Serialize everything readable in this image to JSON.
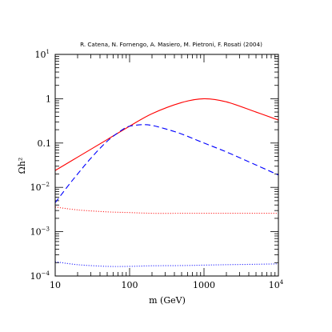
{
  "chart_data": {
    "type": "line",
    "title": "R. Catena, N. Fornengo, A. Masiero, M. Pietroni, F. Rosati (2004)",
    "xlabel": "m (GeV)",
    "ylabel": "Ωh²",
    "xscale": "log",
    "yscale": "log",
    "xlim": [
      10,
      10000
    ],
    "ylim": [
      0.0001,
      10
    ],
    "grid": false,
    "x_ticks": [
      {
        "base": "10",
        "exp": ""
      },
      {
        "base": "100",
        "exp": ""
      },
      {
        "base": "1000",
        "exp": ""
      },
      {
        "base": "10",
        "exp": "4"
      }
    ],
    "y_ticks": [
      {
        "base": "10",
        "exp": "−4"
      },
      {
        "base": "10",
        "exp": "−3"
      },
      {
        "base": "10",
        "exp": "−2"
      },
      {
        "base": "0.1",
        "exp": ""
      },
      {
        "base": "1",
        "exp": ""
      },
      {
        "base": "10",
        "exp": "1"
      }
    ],
    "series": [
      {
        "color": "#ff0000",
        "style": "solid",
        "x": [
          10,
          20,
          50,
          100,
          200,
          500,
          1000,
          2000,
          5000,
          10000
        ],
        "y": [
          0.024,
          0.048,
          0.12,
          0.24,
          0.46,
          0.82,
          1.0,
          0.85,
          0.5,
          0.33
        ]
      },
      {
        "color": "#0000ff",
        "style": "dashed",
        "x": [
          10,
          15,
          20,
          30,
          50,
          80,
          100,
          150,
          200,
          300,
          500,
          1000,
          2000,
          5000,
          10000
        ],
        "y": [
          0.0045,
          0.011,
          0.02,
          0.045,
          0.11,
          0.2,
          0.24,
          0.26,
          0.25,
          0.21,
          0.16,
          0.1,
          0.063,
          0.032,
          0.019
        ]
      },
      {
        "color": "#ff0000",
        "style": "dotted",
        "x": [
          10,
          20,
          50,
          100,
          200,
          500,
          1000,
          2000,
          5000,
          10000
        ],
        "y": [
          0.0036,
          0.0031,
          0.0028,
          0.0027,
          0.0026,
          0.0026,
          0.0026,
          0.0026,
          0.0026,
          0.0026
        ]
      },
      {
        "color": "#0000ff",
        "style": "dotted",
        "x": [
          10,
          20,
          50,
          100,
          200,
          500,
          1000,
          2000,
          5000,
          10000
        ],
        "y": [
          0.00021,
          0.00018,
          0.000165,
          0.000165,
          0.00017,
          0.000172,
          0.000176,
          0.00018,
          0.000184,
          0.000188
        ]
      }
    ]
  }
}
